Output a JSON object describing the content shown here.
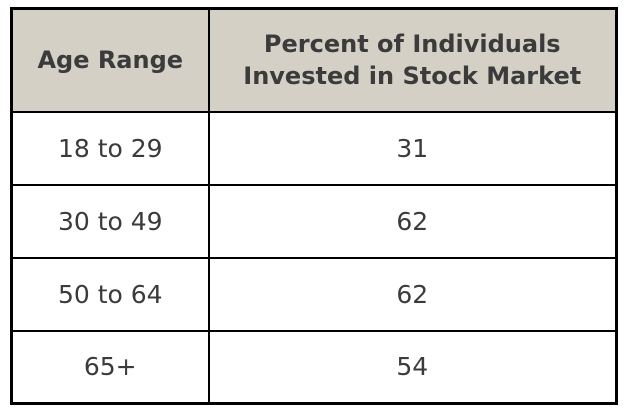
{
  "header": {
    "col1": "Age Range",
    "col2_line1": "Percent of Individuals",
    "col2_line2": "Invested in Stock Market"
  },
  "rows": [
    {
      "age": "18 to 29",
      "percent": "31"
    },
    {
      "age": "30 to 49",
      "percent": "62"
    },
    {
      "age": "50 to 64",
      "percent": "62"
    },
    {
      "age": "65+",
      "percent": "54"
    }
  ],
  "colors": {
    "header_bg": "#d4d0c6",
    "border": "#000000",
    "text": "#3b3b3b",
    "row_bg": "#ffffff"
  },
  "chart_data": {
    "type": "table",
    "columns": [
      "Age Range",
      "Percent of Individuals Invested in Stock Market"
    ],
    "categories": [
      "18 to 29",
      "30 to 49",
      "50 to 64",
      "65+"
    ],
    "values": [
      31,
      62,
      62,
      54
    ]
  }
}
